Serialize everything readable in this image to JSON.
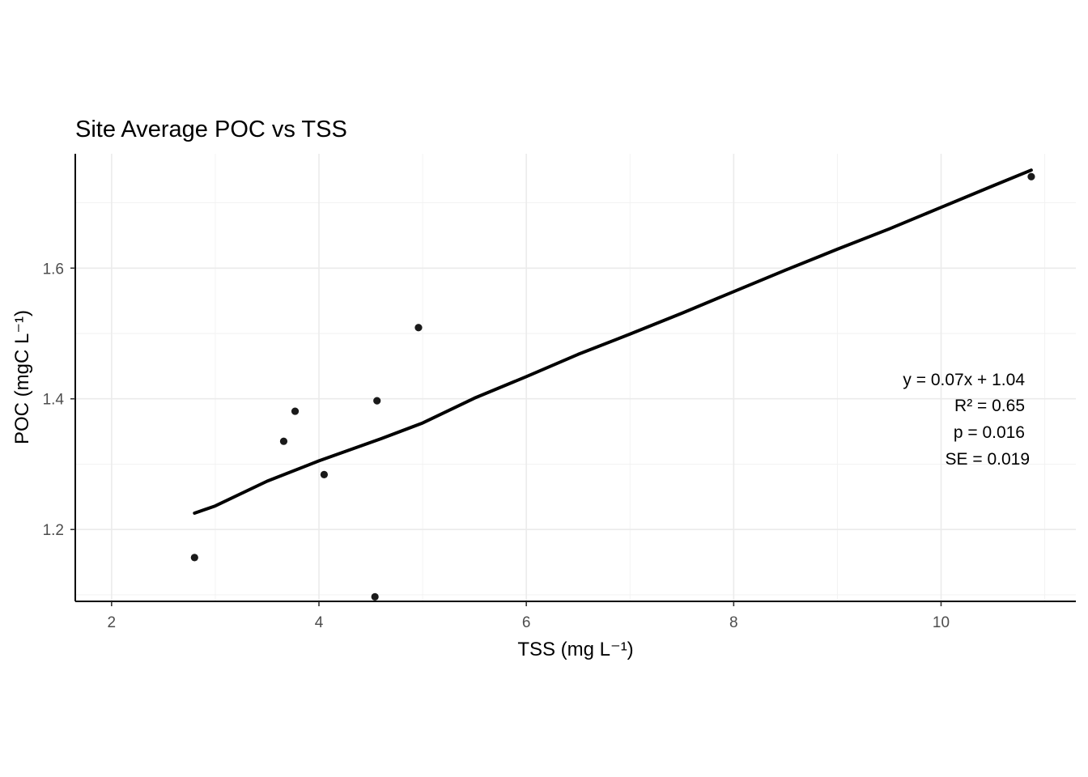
{
  "chart_data": {
    "type": "scatter",
    "title": "Site Average POC vs TSS",
    "xlabel": "TSS (mg L⁻¹)",
    "ylabel": "POC (mgC L⁻¹)",
    "xlim": [
      1.65,
      11.3
    ],
    "ylim": [
      1.09,
      1.775
    ],
    "x_ticks": [
      2,
      4,
      6,
      8,
      10
    ],
    "x_tick_labels": [
      "2",
      "4",
      "6",
      "8",
      "10"
    ],
    "y_ticks": [
      1.2,
      1.4,
      1.6
    ],
    "y_tick_labels": [
      "1.2",
      "1.4",
      "1.6"
    ],
    "grid": true,
    "legend": "none",
    "point_color": "#1a1a1a",
    "line_color": "#000000",
    "points": [
      {
        "x": 2.8,
        "y": 1.157
      },
      {
        "x": 3.66,
        "y": 1.335
      },
      {
        "x": 3.77,
        "y": 1.381
      },
      {
        "x": 4.05,
        "y": 1.284
      },
      {
        "x": 4.56,
        "y": 1.397
      },
      {
        "x": 4.54,
        "y": 1.097
      },
      {
        "x": 4.96,
        "y": 1.509
      },
      {
        "x": 10.87,
        "y": 1.74
      }
    ],
    "fit_line": {
      "x": [
        2.8,
        3.0,
        3.5,
        4.0,
        4.6,
        5.0,
        5.5,
        6.0,
        6.5,
        7.0,
        7.5,
        8.0,
        8.5,
        9.0,
        9.5,
        10.0,
        10.5,
        10.87
      ],
      "y": [
        1.225,
        1.236,
        1.274,
        1.305,
        1.339,
        1.363,
        1.401,
        1.434,
        1.468,
        1.499,
        1.531,
        1.564,
        1.597,
        1.629,
        1.66,
        1.693,
        1.726,
        1.75
      ]
    },
    "annotations": [
      "y = 0.07x + 1.04",
      "R² = 0.65",
      "p = 0.016",
      "SE = 0.019"
    ]
  }
}
